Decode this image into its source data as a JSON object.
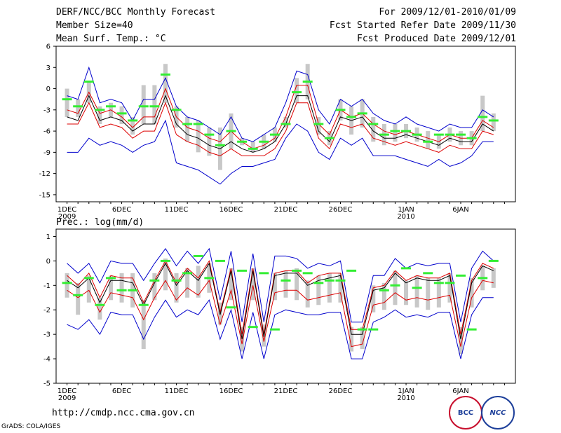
{
  "header": {
    "title": "DERF/NCC/BCC Monthly Forecast",
    "member_size": "Member Size=40",
    "variable1": "Mean Surf. Temp.: °C",
    "period": "For 2009/12/01-2010/01/09",
    "started": "Fcst Started Refer Date 2009/11/30",
    "produced": "Fcst Produced Date 2009/12/01"
  },
  "footer": {
    "url": "http://cmdp.ncc.cma.gov.cn",
    "grads": "GrADS: COLA/IGES",
    "logo_bcc": "BCC",
    "logo_ncc": "NCC"
  },
  "colors": {
    "envelope": "#0000cc",
    "spread": "#dd0000",
    "mean": "#000000",
    "observed": "#33ee33",
    "box": "#c8c8c8"
  },
  "chart_data": [
    {
      "type": "line",
      "title": "Mean Surf. Temp.: °C",
      "ylabel": "°C",
      "ylim": [
        -16,
        6
      ],
      "yticks": [
        6,
        3,
        0,
        -3,
        -6,
        -9,
        -12,
        -15
      ],
      "xticks": [
        {
          "day": 1,
          "label": "1DEC",
          "sub": "2009"
        },
        {
          "day": 6,
          "label": "6DEC",
          "sub": ""
        },
        {
          "day": 11,
          "label": "11DEC",
          "sub": ""
        },
        {
          "day": 16,
          "label": "16DEC",
          "sub": ""
        },
        {
          "day": 21,
          "label": "21DEC",
          "sub": ""
        },
        {
          "day": 26,
          "label": "26DEC",
          "sub": ""
        },
        {
          "day": 32,
          "label": "1JAN",
          "sub": "2010"
        },
        {
          "day": 37,
          "label": "6JAN",
          "sub": ""
        }
      ],
      "days": [
        1,
        2,
        3,
        4,
        5,
        6,
        7,
        8,
        9,
        10,
        11,
        12,
        13,
        14,
        15,
        16,
        17,
        18,
        19,
        20,
        21,
        22,
        23,
        24,
        25,
        26,
        27,
        28,
        29,
        30,
        31,
        32,
        33,
        34,
        35,
        36,
        37,
        38,
        39,
        40
      ],
      "series": [
        {
          "name": "max",
          "values": [
            -1,
            -1.5,
            3,
            -2,
            -1.5,
            -2,
            -4.5,
            -1.5,
            -1.5,
            1.5,
            -2.5,
            -4,
            -4.5,
            -5.5,
            -6.5,
            -4,
            -7,
            -7.5,
            -6.5,
            -5.5,
            -2,
            2.5,
            2,
            -3,
            -5,
            -1.5,
            -2.5,
            -1.5,
            -3.5,
            -4.5,
            -5,
            -4,
            -5,
            -5.5,
            -6,
            -5,
            -5.5,
            -5.5,
            -3,
            -4
          ]
        },
        {
          "name": "upper",
          "values": [
            -3,
            -3.5,
            -0.5,
            -3.5,
            -3,
            -4,
            -5.5,
            -4,
            -4,
            0,
            -4,
            -5.5,
            -6,
            -7,
            -7.5,
            -6,
            -7.5,
            -8.5,
            -8,
            -7,
            -4,
            0.5,
            0.5,
            -5,
            -6.5,
            -3,
            -4,
            -3.5,
            -5,
            -6,
            -6.5,
            -6,
            -6.5,
            -7,
            -7.5,
            -6.5,
            -7,
            -7,
            -4.5,
            -5.5
          ]
        },
        {
          "name": "mean",
          "values": [
            -4,
            -4.5,
            -1,
            -4.5,
            -4,
            -4.5,
            -6,
            -5,
            -5,
            -1,
            -5,
            -6.5,
            -7,
            -8,
            -8.5,
            -7.5,
            -8.5,
            -9,
            -8.5,
            -7.5,
            -5,
            -1,
            -1,
            -6,
            -7.5,
            -4,
            -4.5,
            -4,
            -6,
            -7,
            -7,
            -6.5,
            -7,
            -7.5,
            -8,
            -7,
            -7.5,
            -7.5,
            -5,
            -6
          ]
        },
        {
          "name": "lower",
          "values": [
            -5,
            -5,
            -2,
            -5.5,
            -5,
            -5.5,
            -7,
            -6,
            -6,
            -2,
            -6.5,
            -7.5,
            -8,
            -9,
            -9.5,
            -8.5,
            -9.5,
            -9.5,
            -9.5,
            -8.5,
            -6,
            -2,
            -2,
            -7,
            -8.5,
            -5,
            -5.5,
            -5,
            -7,
            -7.5,
            -8,
            -7.5,
            -8,
            -8.5,
            -9,
            -8,
            -8.5,
            -8.5,
            -6,
            -6.5
          ]
        },
        {
          "name": "min",
          "values": [
            -9,
            -9,
            -7,
            -8,
            -7.5,
            -8,
            -9,
            -8,
            -7.5,
            -4.5,
            -10.5,
            -11,
            -11.5,
            -12.5,
            -13.5,
            -12,
            -11,
            -11,
            -10.5,
            -10,
            -7,
            -5,
            -6,
            -9,
            -10,
            -7,
            -8,
            -7,
            -9.5,
            -9.5,
            -9.5,
            -10,
            -10.5,
            -11,
            -10,
            -11,
            -10.5,
            -9.5,
            -7.5,
            -7.5
          ]
        },
        {
          "name": "observed",
          "values": [
            -1.5,
            -2.5,
            1,
            -3,
            -2.5,
            -3.5,
            -4.5,
            -2.5,
            -2.5,
            2,
            -3,
            -5,
            -5,
            -6.5,
            -8,
            -6,
            -7.5,
            -8.5,
            -7.5,
            -6.5,
            -5,
            -0.5,
            1,
            -5,
            -7,
            -3,
            -4,
            -3.5,
            -5,
            -6.5,
            -6,
            -6,
            -6.5,
            -7.5,
            -6.5,
            -6.5,
            -6.5,
            -7,
            -4,
            -4.5
          ]
        },
        {
          "name": "box_top",
          "values": [
            0,
            -1.5,
            1,
            -2.5,
            -2,
            -2.5,
            -4,
            0.5,
            0.5,
            3.5,
            -2.5,
            -4,
            -4.5,
            -5.5,
            -5.5,
            -3.5,
            -7,
            -7.5,
            -6.5,
            -5.5,
            -4,
            1.5,
            3.5,
            -4,
            -6,
            -1.5,
            -2.5,
            -1.5,
            -4,
            -5,
            -5,
            -5,
            -5.5,
            -6,
            -6.5,
            -5.5,
            -6,
            -6,
            -1,
            -3.5
          ]
        },
        {
          "name": "box_bottom",
          "values": [
            -4,
            -4,
            -2,
            -5,
            -4,
            -5,
            -6.5,
            -5,
            -5,
            -2,
            -5.5,
            -7.5,
            -9,
            -9.5,
            -11.5,
            -8.5,
            -8,
            -9,
            -8.5,
            -7.5,
            -5.5,
            -2,
            -1.5,
            -6.5,
            -8,
            -4.5,
            -6.5,
            -5.5,
            -7.5,
            -8,
            -7.5,
            -7,
            -7.5,
            -8.5,
            -8.5,
            -7.5,
            -8,
            -8,
            -6,
            -6
          ]
        }
      ]
    },
    {
      "type": "line",
      "title": "Prec.: log(mm/d)",
      "ylabel": "log(mm/d)",
      "ylim": [
        -5,
        1.3
      ],
      "yticks": [
        1,
        0,
        -1,
        -2,
        -3,
        -4,
        -5
      ],
      "xticks": [
        {
          "day": 1,
          "label": "1DEC",
          "sub": "2009"
        },
        {
          "day": 6,
          "label": "6DEC",
          "sub": ""
        },
        {
          "day": 11,
          "label": "11DEC",
          "sub": ""
        },
        {
          "day": 16,
          "label": "16DEC",
          "sub": ""
        },
        {
          "day": 21,
          "label": "21DEC",
          "sub": ""
        },
        {
          "day": 26,
          "label": "26DEC",
          "sub": ""
        },
        {
          "day": 32,
          "label": "1JAN",
          "sub": "2010"
        },
        {
          "day": 37,
          "label": "6JAN",
          "sub": ""
        }
      ],
      "days": [
        1,
        2,
        3,
        4,
        5,
        6,
        7,
        8,
        9,
        10,
        11,
        12,
        13,
        14,
        15,
        16,
        17,
        18,
        19,
        20,
        21,
        22,
        23,
        24,
        25,
        26,
        27,
        28,
        29,
        30,
        31,
        32,
        33,
        34,
        35,
        36,
        37,
        38,
        39,
        40
      ],
      "series": [
        {
          "name": "max",
          "values": [
            -0.1,
            -0.5,
            -0.1,
            -0.9,
            0,
            -0.1,
            -0.1,
            -0.8,
            -0.1,
            0.5,
            -0.2,
            0.4,
            -0.1,
            0.5,
            -1.6,
            0.4,
            -2.5,
            0.3,
            -2.5,
            0.2,
            0.2,
            0.1,
            -0.3,
            -0.1,
            -0.2,
            0,
            -2.5,
            -2.5,
            -0.6,
            -0.6,
            0.1,
            -0.3,
            -0.1,
            -0.2,
            -0.1,
            -0.1,
            -2.5,
            -0.3,
            0.4,
            0
          ]
        },
        {
          "name": "upper",
          "values": [
            -0.6,
            -1,
            -0.5,
            -1.5,
            -0.6,
            -0.7,
            -0.7,
            -1.7,
            -0.8,
            0,
            -0.9,
            -0.3,
            -0.7,
            0,
            -2.1,
            -0.3,
            -3,
            -0.3,
            -3,
            -0.5,
            -0.4,
            -0.4,
            -0.9,
            -0.6,
            -0.5,
            -0.5,
            -2.8,
            -2.8,
            -1.1,
            -1,
            -0.4,
            -0.8,
            -0.6,
            -0.7,
            -0.7,
            -0.5,
            -3,
            -0.8,
            -0.1,
            -0.3
          ]
        },
        {
          "name": "mean",
          "values": [
            -0.8,
            -1.1,
            -0.7,
            -1.7,
            -0.8,
            -0.8,
            -0.9,
            -1.8,
            -0.9,
            -0.1,
            -1,
            -0.4,
            -0.8,
            -0.1,
            -2.2,
            -0.4,
            -3.2,
            -0.4,
            -3.1,
            -0.6,
            -0.5,
            -0.5,
            -1,
            -0.8,
            -0.7,
            -0.6,
            -3,
            -3,
            -1.2,
            -1.1,
            -0.5,
            -0.9,
            -0.7,
            -0.8,
            -0.8,
            -0.6,
            -3.2,
            -0.9,
            -0.2,
            -0.4
          ]
        },
        {
          "name": "lower",
          "values": [
            -1.2,
            -1.5,
            -1.2,
            -2.1,
            -1.3,
            -1.4,
            -1.5,
            -2.4,
            -1.5,
            -0.8,
            -1.6,
            -1.1,
            -1.4,
            -0.8,
            -2.6,
            -1.2,
            -3.4,
            -1,
            -3.3,
            -1.3,
            -1.2,
            -1.2,
            -1.6,
            -1.5,
            -1.4,
            -1.3,
            -3.5,
            -3.4,
            -1.8,
            -1.7,
            -1.3,
            -1.6,
            -1.5,
            -1.6,
            -1.5,
            -1.4,
            -3.5,
            -1.5,
            -0.8,
            -0.9
          ]
        },
        {
          "name": "min",
          "values": [
            -2.6,
            -2.8,
            -2.4,
            -3,
            -2.1,
            -2.2,
            -2.2,
            -3.2,
            -2.3,
            -1.6,
            -2.3,
            -2,
            -2.2,
            -1.6,
            -3.2,
            -2,
            -4,
            -2.1,
            -4,
            -2.2,
            -2,
            -2.1,
            -2.2,
            -2.2,
            -2.1,
            -2.1,
            -4,
            -4,
            -2.5,
            -2.3,
            -2,
            -2.3,
            -2.2,
            -2.3,
            -2.1,
            -2.1,
            -4,
            -2.2,
            -1.5,
            -1.5
          ]
        },
        {
          "name": "observed",
          "values": [
            -0.9,
            -1.4,
            -0.7,
            -1.8,
            -0.7,
            -1.2,
            -1.2,
            -1.8,
            -0.8,
            0,
            -0.8,
            -0.5,
            0.2,
            -0.7,
            0,
            -1.9,
            -0.4,
            -2.7,
            -0.5,
            -2.8,
            -0.8,
            -0.4,
            -0.5,
            -0.9,
            -0.8,
            -0.8,
            -0.4,
            -2.8,
            -2.8,
            -1.2,
            -1,
            -0.3,
            -1.1,
            -0.5,
            -0.9,
            -0.9,
            -0.6,
            -2.8,
            -0.7,
            0
          ]
        },
        {
          "name": "box_top",
          "values": [
            -0.5,
            -0.9,
            -0.6,
            -1.5,
            -0.6,
            -0.5,
            -0.5,
            -1.6,
            -0.5,
            0.1,
            -0.5,
            -0.3,
            -0.2,
            -0.1,
            -1.7,
            -0.3,
            -2.7,
            -0.3,
            -2.6,
            -0.5,
            -0.4,
            -0.3,
            -0.8,
            -0.6,
            -0.5,
            -0.5,
            -2.7,
            -2.7,
            -1,
            -0.9,
            -0.4,
            -0.8,
            -0.6,
            -0.7,
            -0.7,
            -0.5,
            -2.7,
            -0.7,
            -0.2,
            -0.3
          ]
        },
        {
          "name": "box_bottom",
          "values": [
            -1.5,
            -2.2,
            -1.7,
            -2.4,
            -1.6,
            -1.7,
            -1.9,
            -3.6,
            -1.6,
            -1.2,
            -1.7,
            -1.5,
            -1.5,
            -1.3,
            -2.6,
            -1.6,
            -3.7,
            -1.6,
            -3.5,
            -1.6,
            -1.5,
            -1.6,
            -1.9,
            -1.8,
            -1.7,
            -1.7,
            -3.7,
            -3.6,
            -2.1,
            -2,
            -1.8,
            -1.8,
            -1.9,
            -2,
            -1.9,
            -1.7,
            -3.8,
            -1.9,
            -1.2,
            -1.1
          ]
        }
      ]
    }
  ]
}
